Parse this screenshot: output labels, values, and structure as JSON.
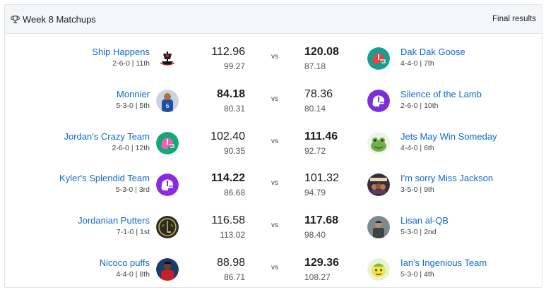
{
  "header": {
    "title": "Week 8 Matchups",
    "status": "Final results"
  },
  "vs_label": "vs",
  "matchups": [
    {
      "home": {
        "name": "Ship Happens",
        "record": "2-6-0 | 11th",
        "points": "112.96",
        "projected": "99.27",
        "winner": false,
        "avatar": "pirate-ship-logo"
      },
      "away": {
        "name": "Dak Dak Goose",
        "record": "4-4-0 | 7th",
        "points": "120.08",
        "projected": "87.18",
        "winner": true,
        "avatar": "football-helmet-red"
      }
    },
    {
      "home": {
        "name": "Monnier",
        "record": "5-3-0 | 5th",
        "points": "84.18",
        "projected": "80.31",
        "winner": true,
        "avatar": "player-photo-blue-jersey"
      },
      "away": {
        "name": "Silence of the Lamb",
        "record": "2-6-0 | 10th",
        "points": "78.36",
        "projected": "80.14",
        "winner": false,
        "avatar": "football-helmet-purple"
      }
    },
    {
      "home": {
        "name": "Jordan's Crazy Team",
        "record": "2-6-0 | 12th",
        "points": "102.40",
        "projected": "90.35",
        "winner": false,
        "avatar": "football-helmet-pink"
      },
      "away": {
        "name": "Jets May Win Someday",
        "record": "4-4-0 | 6th",
        "points": "111.46",
        "projected": "92.72",
        "winner": true,
        "avatar": "cartoon-frog"
      }
    },
    {
      "home": {
        "name": "Kyler's Splendid Team",
        "record": "5-3-0 | 3rd",
        "points": "114.22",
        "projected": "86.68",
        "winner": true,
        "avatar": "football-helmet-violet"
      },
      "away": {
        "name": "I'm sorry Miss Jackson",
        "record": "3-5-0 | 9th",
        "points": "101.32",
        "projected": "94.79",
        "winner": false,
        "avatar": "band-poster-image"
      }
    },
    {
      "home": {
        "name": "Jordanian Putters",
        "record": "7-1-0 | 1st",
        "points": "116.58",
        "projected": "113.02",
        "winner": false,
        "avatar": "golf-club-emblem"
      },
      "away": {
        "name": "Lisan al-QB",
        "record": "5-3-0 | 2nd",
        "points": "117.68",
        "projected": "98.40",
        "winner": true,
        "avatar": "character-photo"
      }
    },
    {
      "home": {
        "name": "Nicoco puffs",
        "record": "4-4-0 | 8th",
        "points": "88.98",
        "projected": "86.71",
        "winner": false,
        "avatar": "player-photo-red-jersey"
      },
      "away": {
        "name": "Ian's Ingenious Team",
        "record": "5-3-0 | 4th",
        "points": "129.36",
        "projected": "108.27",
        "winner": true,
        "avatar": "cartoon-lemon-face"
      }
    }
  ],
  "colors": {
    "link": "#0f69d1",
    "header_bg": "#f4f6f8",
    "border": "#dfe3e8"
  }
}
